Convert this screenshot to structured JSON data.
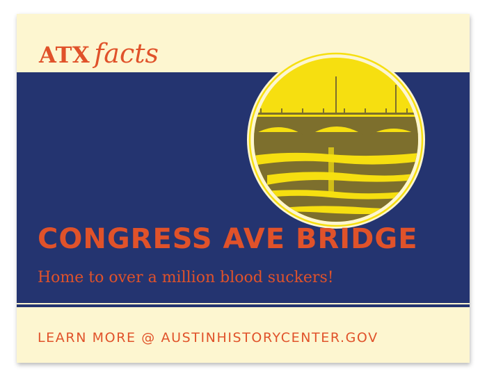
{
  "brand": {
    "prefix": "ATX",
    "suffix": "facts"
  },
  "headline": "CONGRESS AVE BRIDGE",
  "subline": "Home to over a million blood suckers!",
  "footer": {
    "link_text": "LEARN MORE @ AUSTINHISTORYCENTER.GOV"
  },
  "image": {
    "subject": "bridge-illustration"
  },
  "colors": {
    "accent": "#e0522a",
    "navy": "#243470",
    "cream": "#fdf6d0",
    "yellow": "#f6df10",
    "olive": "#7d6f2d"
  }
}
